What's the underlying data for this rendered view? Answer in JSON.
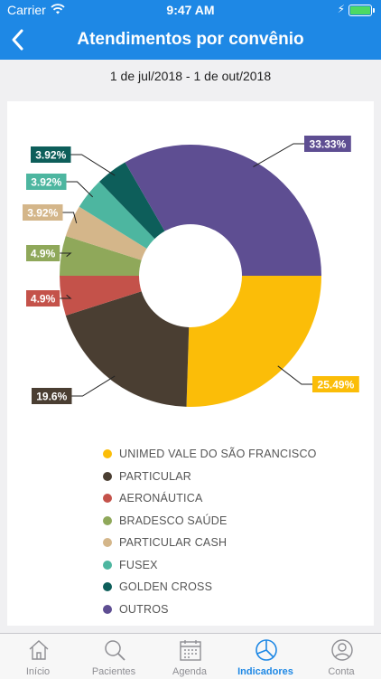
{
  "status_bar": {
    "carrier": "Carrier",
    "time": "9:47 AM"
  },
  "nav": {
    "title": "Atendimentos por convênio",
    "back_icon": "chevron-left-icon"
  },
  "date_range": "1 de jul/2018 - 1 de out/2018",
  "chart_data": {
    "type": "pie",
    "donut": true,
    "slices": [
      {
        "name": "UNIMED VALE DO SÃO FRANCISCO",
        "value": 25.49,
        "label": "25.49%",
        "color": "#fbbd08"
      },
      {
        "name": "PARTICULAR",
        "value": 19.6,
        "label": "19.6%",
        "color": "#4a3e32"
      },
      {
        "name": "AERONÁUTICA",
        "value": 4.9,
        "label": "4.9%",
        "color": "#c4524a"
      },
      {
        "name": "BRADESCO SAÚDE",
        "value": 4.9,
        "label": "4.9%",
        "color": "#8fa85a"
      },
      {
        "name": "PARTICULAR CASH",
        "value": 3.92,
        "label": "3.92%",
        "color": "#d4b68a"
      },
      {
        "name": "FUSEX",
        "value": 3.92,
        "label": "3.92%",
        "color": "#4db6a0"
      },
      {
        "name": "GOLDEN CROSS",
        "value": 3.92,
        "label": "3.92%",
        "color": "#0d5e5a"
      },
      {
        "name": "OUTROS",
        "value": 33.33,
        "label": "33.33%",
        "color": "#5e4e92"
      }
    ],
    "legend": "bottom"
  },
  "tabs": [
    {
      "label": "Início",
      "icon": "home-icon",
      "active": false
    },
    {
      "label": "Pacientes",
      "icon": "search-icon",
      "active": false
    },
    {
      "label": "Agenda",
      "icon": "calendar-icon",
      "active": false
    },
    {
      "label": "Indicadores",
      "icon": "pie-chart-icon",
      "active": true
    },
    {
      "label": "Conta",
      "icon": "user-icon",
      "active": false
    }
  ]
}
